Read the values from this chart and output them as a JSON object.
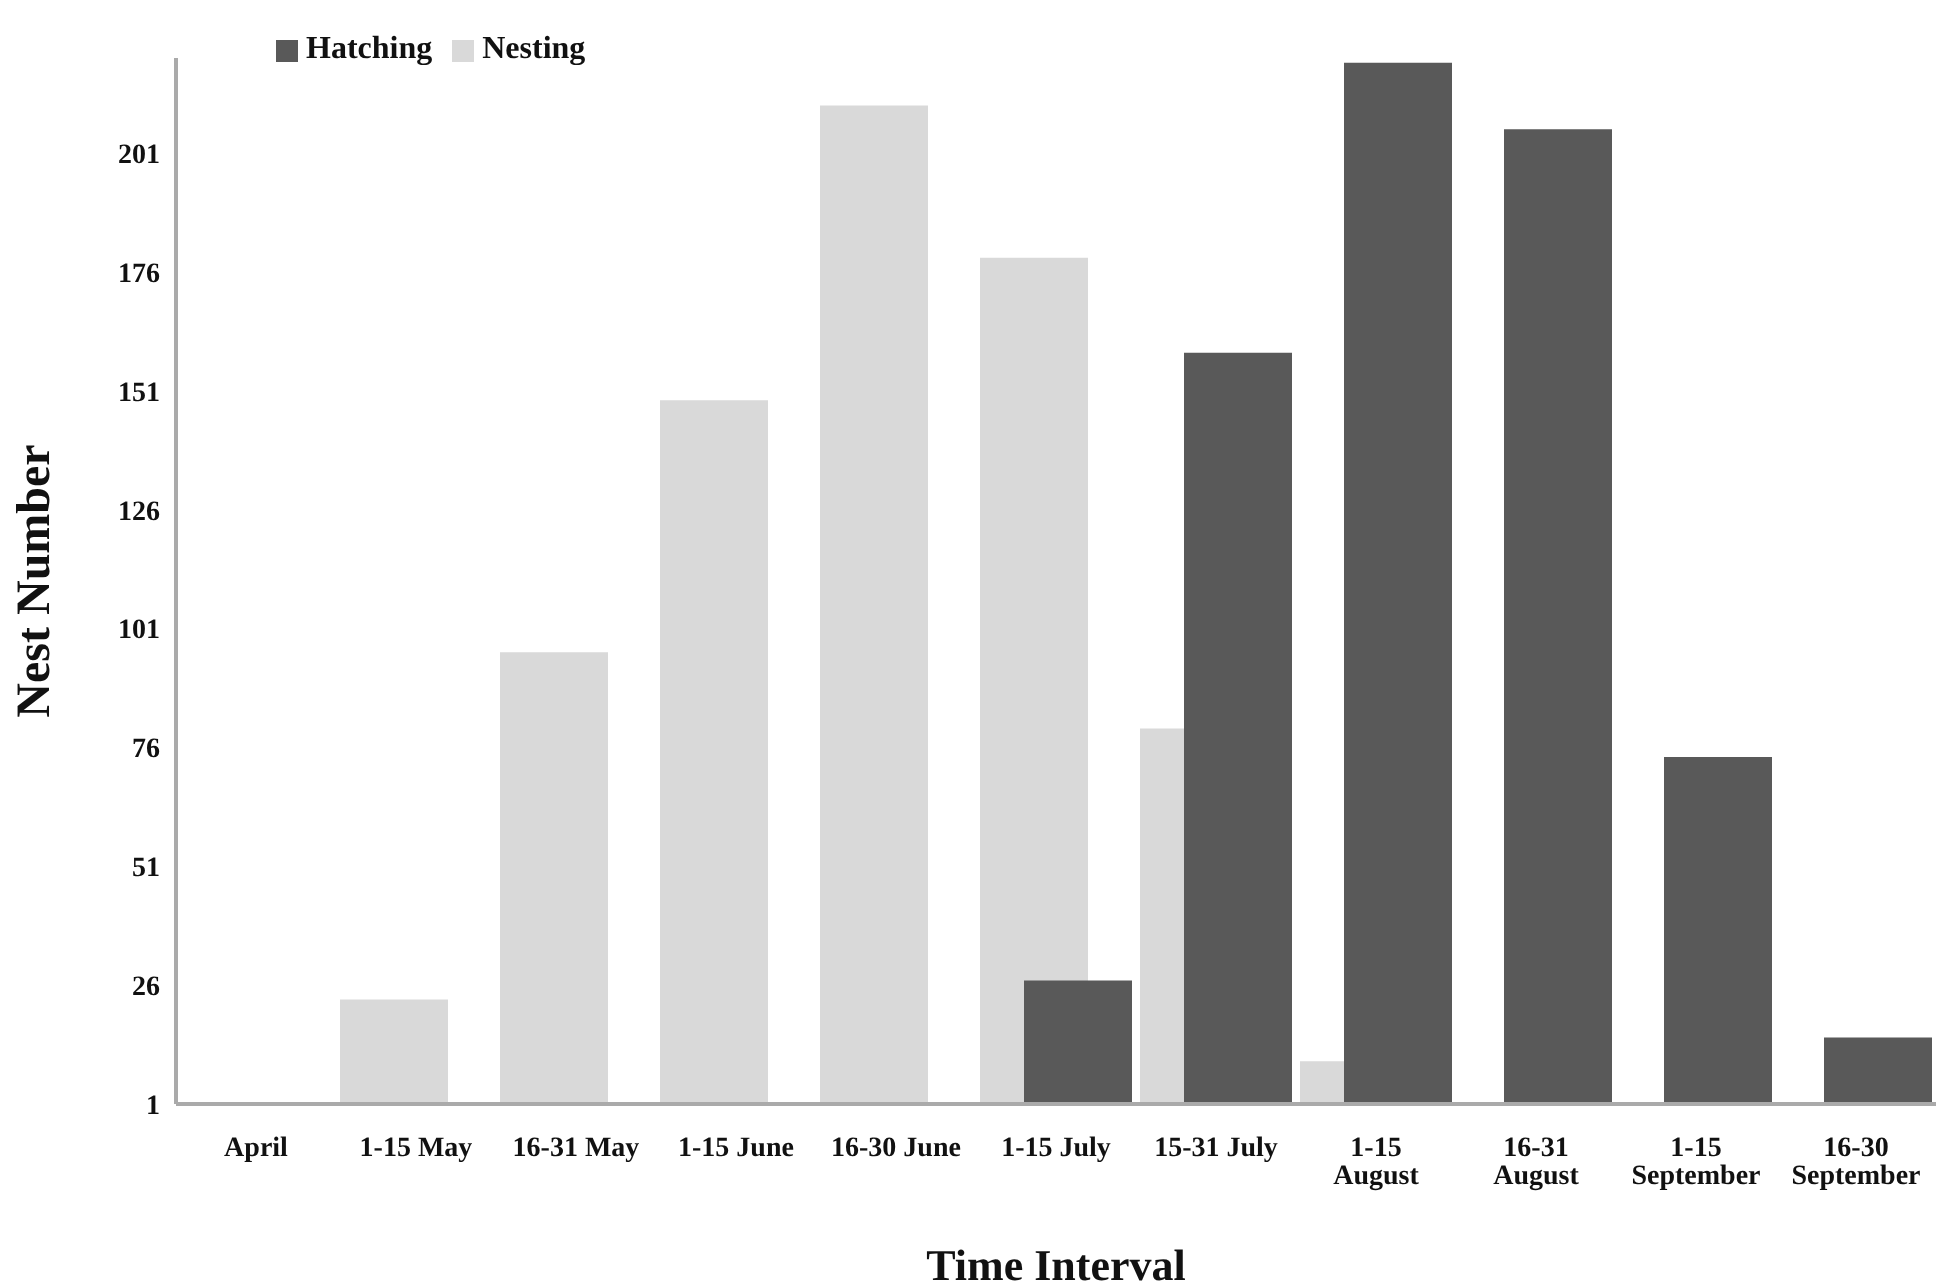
{
  "chart_data": {
    "type": "bar",
    "xlabel": "Time Interval",
    "ylabel": "Nest Number",
    "categories": [
      "April",
      "1-15 May",
      "16-31 May",
      "1-15 June",
      "16-30 June",
      "1-15 July",
      "15-31 July",
      "1-15 August",
      "16-31 August",
      "1-15 September",
      "16-30 September"
    ],
    "series": [
      {
        "name": "Nesting",
        "color": "#d9d9d9",
        "values": [
          null,
          23,
          96,
          149,
          211,
          179,
          80,
          10,
          null,
          null,
          null
        ]
      },
      {
        "name": "Hatching",
        "color": "#595959",
        "values": [
          null,
          null,
          null,
          null,
          null,
          27,
          159,
          220,
          206,
          74,
          15
        ]
      }
    ],
    "ylim": [
      1,
      221
    ],
    "yticks": [
      1,
      26,
      51,
      76,
      101,
      126,
      151,
      176,
      201
    ],
    "grid": false,
    "legend": "top left"
  }
}
